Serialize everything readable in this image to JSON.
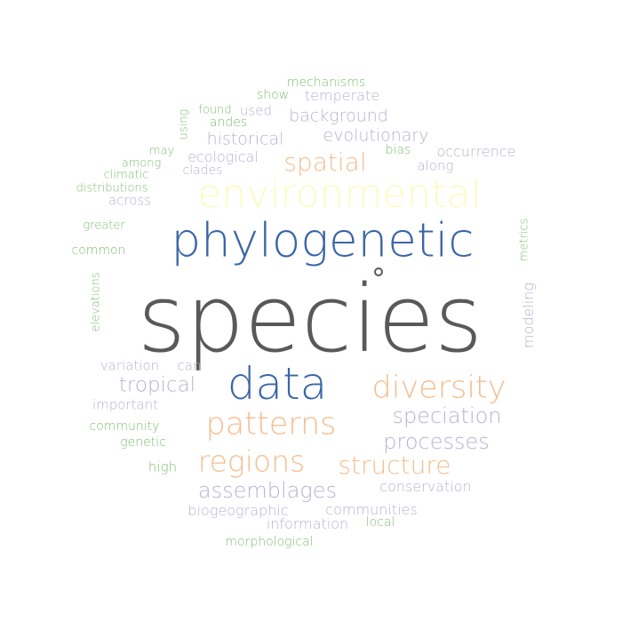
{
  "colors": {
    "dark": "#595959",
    "blue": "#3b66a8",
    "orange": "#f5be91",
    "yellow": "#fbfbc4",
    "lavender": "#b9b2d3",
    "green": "#7fbf73"
  },
  "words": {
    "species": "species",
    "environmental": "environmental",
    "phylogenetic": "phylogenetic",
    "data": "data",
    "diversity": "diversity",
    "patterns": "patterns",
    "regions": "regions",
    "structure": "structure",
    "speciation": "speciation",
    "processes": "processes",
    "assemblages": "assemblages",
    "spatial": "spatial",
    "evolutionary": "evolutionary",
    "background": "background",
    "historical": "historical",
    "tropical": "tropical",
    "occurrence": "occurrence",
    "conservation": "conservation",
    "biogeographic": "biogeographic",
    "communities": "communities",
    "information": "information",
    "modeling": "modeling",
    "temperate": "temperate",
    "ecological": "ecological",
    "variation": "variation",
    "along": "along",
    "mechanisms": "mechanisms",
    "show": "show",
    "used": "used",
    "found": "found",
    "andes": "andes",
    "using": "using",
    "may": "may",
    "among": "among",
    "climatic": "climatic",
    "clades": "clades",
    "bias": "bias",
    "distributions": "distributions",
    "across": "across",
    "greater": "greater",
    "common": "common",
    "metrics": "metrics",
    "elevations": "elevations",
    "can": "can",
    "important": "important",
    "community": "community",
    "genetic": "genetic",
    "high": "high",
    "local": "local",
    "morphological": "morphological"
  }
}
